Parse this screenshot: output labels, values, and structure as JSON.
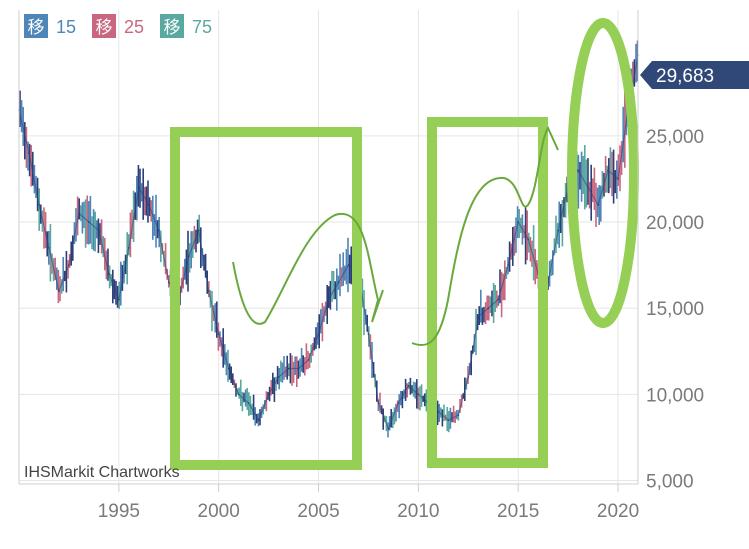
{
  "chart_data": {
    "type": "line",
    "title": "",
    "xlabel": "",
    "ylabel": "",
    "xlim": [
      1990.0,
      2021.0
    ],
    "ylim": [
      4800,
      32300
    ],
    "x_ticks": [
      1995,
      2000,
      2005,
      2010,
      2015,
      2020
    ],
    "y_ticks": [
      5000,
      10000,
      15000,
      20000,
      25000
    ],
    "y_tick_labels": [
      "5,000",
      "10,000",
      "15,000",
      "20,000",
      "25,000"
    ],
    "x_tick_labels": [
      "1995",
      "2000",
      "2005",
      "2010",
      "2015",
      "2020"
    ],
    "grid": true,
    "legend": {
      "position": "top-left",
      "items": [
        {
          "label": "15",
          "glyph": "移",
          "color": "#4f86b8"
        },
        {
          "label": "25",
          "glyph": "移",
          "color": "#c9677f"
        },
        {
          "label": "75",
          "glyph": "移",
          "color": "#5aa9a0"
        }
      ]
    },
    "last_value_label": "29,683",
    "credit": "IHSMarkit Chartworks",
    "series": [
      {
        "color": "#2c3f78",
        "x": [
          1990.0,
          1990.5,
          1991.0,
          1991.5,
          1992.0,
          1992.5,
          1993.0,
          1993.5,
          1994.0,
          1994.5,
          1995.0,
          1995.5,
          1996.0,
          1996.5,
          1997.0,
          1997.5,
          1998.0,
          1998.5,
          1999.0,
          1999.5,
          2000.0,
          2000.5,
          2001.0,
          2001.5,
          2002.0,
          2002.5,
          2003.0,
          2003.5,
          2004.0,
          2004.5,
          2005.0,
          2005.5,
          2006.0,
          2006.5,
          2007.0,
          2007.5,
          2008.0,
          2008.5,
          2009.0,
          2009.5,
          2010.0,
          2010.5,
          2011.0,
          2011.5,
          2012.0,
          2012.5,
          2013.0,
          2013.5,
          2014.0,
          2014.5,
          2015.0,
          2015.5,
          2016.0,
          2016.5,
          2017.0,
          2017.5,
          2018.0,
          2018.5,
          2019.0,
          2019.5,
          2020.0,
          2020.5,
          2021.0
        ],
        "values": [
          26500,
          24000,
          21000,
          18500,
          16000,
          17500,
          20500,
          20000,
          19500,
          17000,
          15500,
          18500,
          22000,
          21000,
          19500,
          16500,
          15500,
          18000,
          19500,
          16000,
          13500,
          11500,
          10000,
          9500,
          8500,
          10000,
          11000,
          11500,
          11500,
          12000,
          13500,
          15500,
          16500,
          17500,
          17000,
          13500,
          9500,
          8000,
          9500,
          10500,
          10000,
          9500,
          9000,
          8500,
          8800,
          11000,
          14500,
          15000,
          15500,
          17500,
          20000,
          19000,
          17000,
          16500,
          19500,
          22000,
          23000,
          22000,
          21000,
          23000,
          22500,
          26500,
          29683
        ]
      }
    ]
  }
}
